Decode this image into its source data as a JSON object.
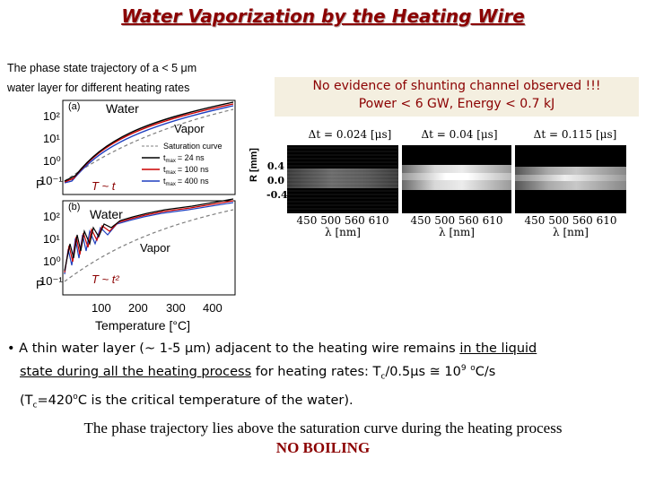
{
  "title": "Water Vaporization by the Heating Wire",
  "phase_caption": {
    "line1": "The phase state trajectory of a < 5 μm",
    "line2": "water layer for different heating rates"
  },
  "evidence": {
    "line1": "No evidence of shunting channel observed !!!",
    "line2": "Power < 6 GW, Energy < 0.7 kJ"
  },
  "plot": {
    "ylabel": "P",
    "xlabel": "Temperature [°C]",
    "x_ticks": [
      "100",
      "200",
      "300",
      "400"
    ],
    "y_ticks_a": [
      "10²",
      "10¹",
      "10⁰",
      "10⁻¹"
    ],
    "y_ticks_b": [
      "10²",
      "10¹",
      "10⁰",
      "10⁻¹"
    ],
    "panel_a": {
      "tag": "(a)",
      "water": "Water",
      "vapor": "Vapor",
      "approx": "T ~ t"
    },
    "panel_b": {
      "tag": "(b)",
      "water": "Water",
      "vapor": "Vapor",
      "approx": "T ~ t²"
    },
    "legend": [
      {
        "label": "Saturation curve",
        "color": "#7f7f7f",
        "dash": true
      },
      {
        "label": "t_max = 24 ns",
        "color": "#000000"
      },
      {
        "label": "t_max = 100 ns",
        "color": "#cc0000"
      },
      {
        "label": "t_max = 400 ns",
        "color": "#1f3fbf"
      }
    ],
    "legend_display": [
      {
        "sub": "max",
        "val": "= 24 ns"
      },
      {
        "sub": "max",
        "val": "= 100 ns"
      },
      {
        "sub": "max",
        "val": "= 400 ns"
      }
    ]
  },
  "images": {
    "rlabel": "R [mm]",
    "r_ticks": [
      "0.4",
      "0.0",
      "-0.4"
    ],
    "panels": [
      {
        "dt": "Δt = 0.024 [μs]",
        "ticks": "450 500 560 610",
        "lambda": "λ [nm]"
      },
      {
        "dt": "Δt = 0.04 [μs]",
        "ticks": "450 500 560 610",
        "lambda": "λ [nm]"
      },
      {
        "dt": "Δt = 0.115 [μs]",
        "ticks": "450 500 560 610",
        "lambda": "λ [nm]"
      }
    ]
  },
  "bullet": {
    "marker": "•",
    "l1a": "A thin water layer (~ 1-5 μm) adjacent to the heating wire remains ",
    "l1b": "in the liquid",
    "l2a": "state during all the heating process",
    "l2b": " for heating rates: T",
    "l2c": "c",
    "l2d": "/0.5μs ≅ 10",
    "l2e": "9",
    "l2f": " ",
    "l2g": "o",
    "l2h": "C/s",
    "l3a": "(T",
    "l3b": "c",
    "l3c": "=420",
    "l3d": "o",
    "l3e": "C is the critical temperature of the water)."
  },
  "conclusion": "The phase trajectory lies above the saturation curve during the heating process",
  "no_boiling": "NO BOILING"
}
